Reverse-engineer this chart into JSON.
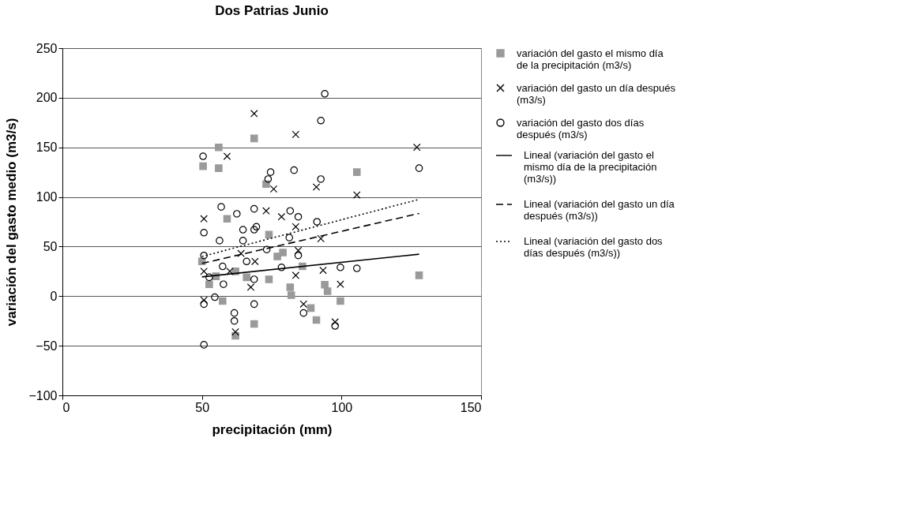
{
  "chart_data": {
    "type": "scatter",
    "title": "Dos Patrias Junio",
    "xlabel": "precipitación (mm)",
    "ylabel": "variación del gasto medio (m3/s)",
    "xlim": [
      0,
      150
    ],
    "xticks": [
      0,
      50,
      100,
      150
    ],
    "ylim": [
      -100,
      250
    ],
    "yticks": [
      -100,
      -50,
      0,
      50,
      100,
      150,
      200,
      250
    ],
    "grid": "y",
    "legend": "right",
    "series": [
      {
        "name": "variación del gasto el mismo día de la precipitación (m3/s)",
        "type": "scatter",
        "marker": "square",
        "color": "#9a9a9a",
        "x": [
          50.4,
          56,
          56,
          68.7,
          73,
          105.5,
          127.8,
          74,
          81.6,
          82,
          94,
          95,
          91,
          79,
          74,
          99.6,
          59,
          50,
          62,
          52.6,
          57.4,
          68.7,
          62,
          66,
          86,
          89,
          77,
          55
        ],
        "values": [
          131,
          129,
          150,
          159,
          113,
          125,
          21,
          17,
          9,
          1,
          11.5,
          5,
          -24,
          44,
          62,
          -5,
          78,
          35,
          25,
          12,
          -5,
          -28,
          -40,
          19,
          30,
          -12,
          40,
          20
        ]
      },
      {
        "name": "variación del gasto un día después (m3/s)",
        "type": "scatter",
        "marker": "cross",
        "color": "#000000",
        "x": [
          68.7,
          59,
          73,
          83.6,
          127,
          75.7,
          91,
          105.5,
          78.5,
          83.6,
          92.6,
          84.5,
          83.6,
          93.4,
          99.6,
          86.4,
          97.7,
          50.7,
          50.7,
          64,
          60,
          67.5,
          50.7,
          62,
          69
        ],
        "values": [
          184,
          141,
          86,
          163,
          150,
          108,
          110,
          102,
          80,
          70,
          58,
          46,
          21,
          26,
          12,
          -8,
          -26,
          78,
          25,
          43,
          25,
          9,
          -4,
          -36,
          35
        ]
      },
      {
        "name": "variación del gasto dos días después (m3/s)",
        "type": "scatter",
        "marker": "circle",
        "color": "#000000",
        "x": [
          94,
          92.6,
          83,
          127.8,
          92.6,
          74.6,
          50.4,
          73.7,
          56.9,
          62.5,
          68.7,
          50.7,
          56.3,
          64.7,
          68.7,
          64.7,
          73.2,
          50.7,
          57.4,
          66,
          52.6,
          57.7,
          68.7,
          50.7,
          54.6,
          68.7,
          61.6,
          61.6,
          50.7,
          69.5,
          91.2,
          81.3,
          84.5,
          78.5,
          99.6,
          105.5,
          86.4,
          97.7,
          81.6,
          84.5
        ],
        "values": [
          204,
          177,
          127,
          129,
          118,
          125,
          141,
          118,
          90,
          83,
          88,
          64,
          56,
          67,
          67,
          56,
          47,
          41,
          30,
          35,
          19,
          12,
          17,
          -8,
          -1,
          -8,
          -17,
          -25,
          -49,
          70,
          75,
          59,
          41,
          29,
          29,
          28,
          -17,
          -30,
          86,
          80
        ]
      },
      {
        "name": "Lineal (variación del gasto el mismo día de la precipitación (m3/s))",
        "type": "line",
        "line_style": "solid",
        "color": "#000000",
        "x": [
          50,
          127.8
        ],
        "values": [
          19.4,
          42.3
        ]
      },
      {
        "name": "Lineal (variación del gasto un día después (m3/s))",
        "type": "line",
        "line_style": "dashed",
        "color": "#000000",
        "x": [
          50,
          127.8
        ],
        "values": [
          33,
          83.4
        ]
      },
      {
        "name": "Lineal (variación del gasto dos días después (m3/s))",
        "type": "line",
        "line_style": "dotted",
        "color": "#000000",
        "x": [
          50,
          127.8
        ],
        "values": [
          40,
          97.6
        ]
      }
    ]
  }
}
